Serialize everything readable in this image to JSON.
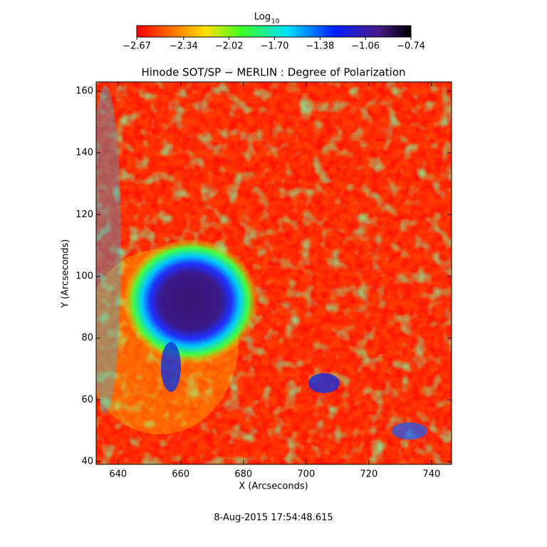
{
  "chart_data": {
    "type": "image",
    "title": "Hinode SOT/SP − MERLIN : Degree of Polarization",
    "xlabel": "X (Arcseconds)",
    "ylabel": "Y (Arcseconds)",
    "xlim": [
      633,
      746.4
    ],
    "ylim": [
      39.1,
      163
    ],
    "xticks": [
      640,
      660,
      680,
      700,
      720,
      740
    ],
    "yticks": [
      40,
      60,
      80,
      100,
      120,
      140,
      160
    ],
    "colorbar": {
      "label": "Log",
      "label_subscript": "10",
      "lim": [
        -2.67,
        -0.74
      ],
      "ticks": [
        {
          "value": -2.67,
          "label": "−2.67"
        },
        {
          "value": -2.34,
          "label": "−2.34"
        },
        {
          "value": -2.02,
          "label": "−2.02"
        },
        {
          "value": -1.7,
          "label": "−1.70"
        },
        {
          "value": -1.38,
          "label": "−1.38"
        },
        {
          "value": -1.06,
          "label": "−1.06"
        },
        {
          "value": -0.74,
          "label": "−0.74"
        }
      ]
    },
    "footer": "8-Aug-2015 17:54:48.615"
  }
}
